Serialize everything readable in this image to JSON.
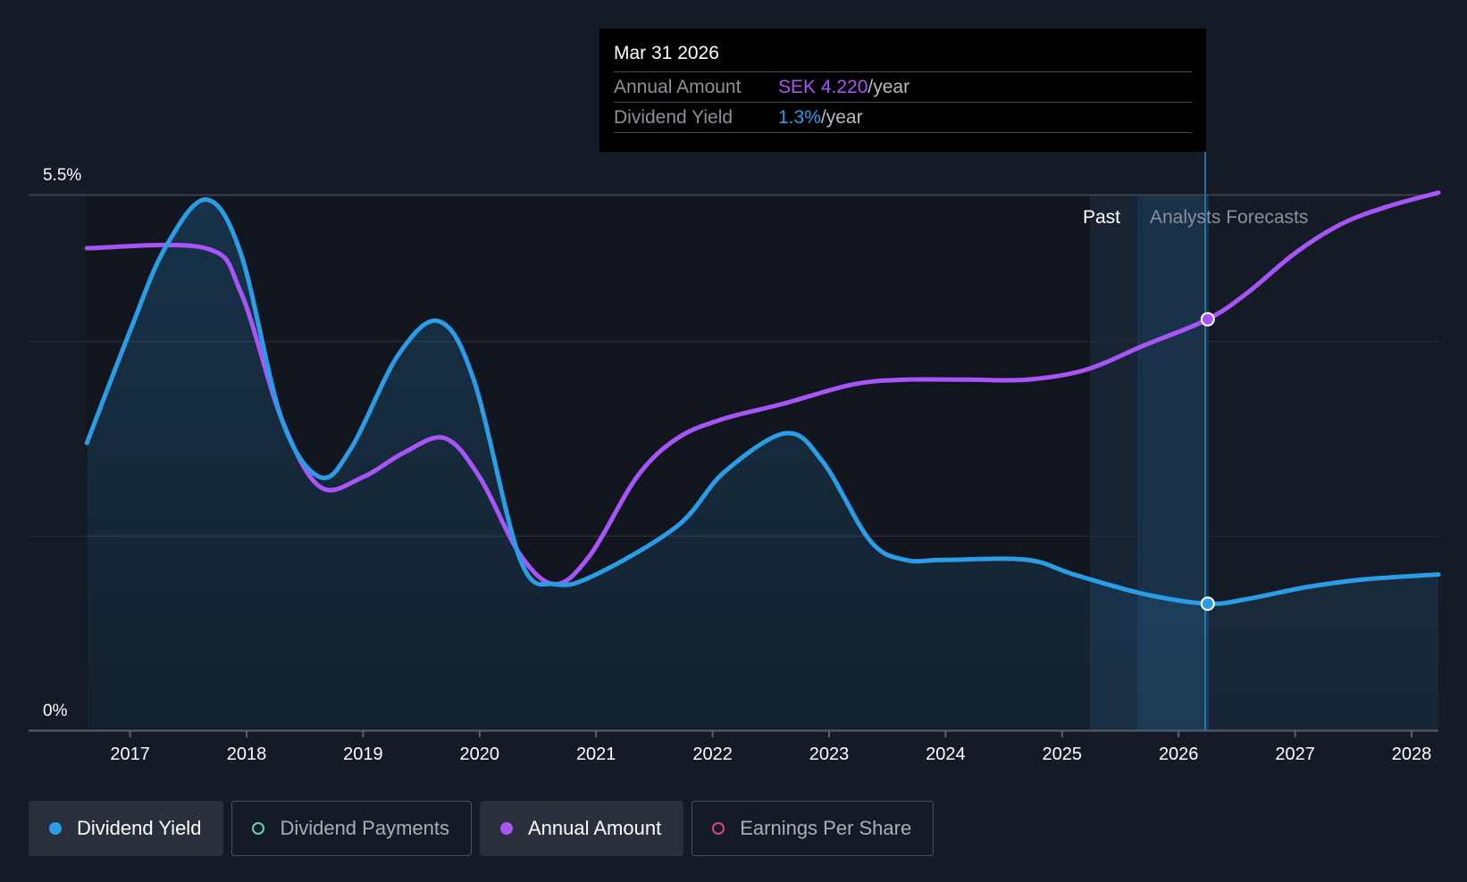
{
  "colors": {
    "background": "#151b26",
    "dividend_yield": "#2b9ce6",
    "annual_amount": "#a855f7",
    "dividend_payments": "#5fd0c5",
    "earnings_per_share": "#d04a82"
  },
  "tooltip": {
    "date": "Mar 31 2026",
    "rows": [
      {
        "label": "Annual Amount",
        "value": "SEK 4.220",
        "unit": "/year"
      },
      {
        "label": "Dividend Yield",
        "value": "1.3%",
        "unit": "/year"
      }
    ]
  },
  "legend": [
    {
      "label": "Dividend Yield",
      "active": true,
      "icon": "filled-dot-icon"
    },
    {
      "label": "Dividend Payments",
      "active": false,
      "icon": "hollow-dot-icon"
    },
    {
      "label": "Annual Amount",
      "active": true,
      "icon": "filled-dot-icon"
    },
    {
      "label": "Earnings Per Share",
      "active": false,
      "icon": "hollow-dot-icon"
    }
  ],
  "chart_data": {
    "type": "line",
    "title": "",
    "y_tick_labels": {
      "top": "5.5%",
      "bottom": "0%"
    },
    "ylim": [
      0,
      5.5
    ],
    "xlim": [
      2016.62,
      2028.23
    ],
    "x_ticks": [
      "2017",
      "2018",
      "2019",
      "2020",
      "2021",
      "2022",
      "2023",
      "2024",
      "2025",
      "2026",
      "2027",
      "2028"
    ],
    "past_label": "Past",
    "forecast_label": "Analysts Forecasts",
    "forecast_start": 2025.25,
    "highlight_x": 2026.25,
    "series": [
      {
        "name": "Dividend Yield",
        "unit": "%",
        "area": true,
        "points": [
          [
            2016.63,
            2.95
          ],
          [
            2017.0,
            4.1
          ],
          [
            2017.3,
            4.95
          ],
          [
            2017.65,
            5.45
          ],
          [
            2017.95,
            4.9
          ],
          [
            2018.3,
            3.2
          ],
          [
            2018.63,
            2.6
          ],
          [
            2018.9,
            2.9
          ],
          [
            2019.3,
            3.85
          ],
          [
            2019.65,
            4.2
          ],
          [
            2019.95,
            3.6
          ],
          [
            2020.35,
            1.75
          ],
          [
            2020.65,
            1.5
          ],
          [
            2021.0,
            1.6
          ],
          [
            2021.7,
            2.1
          ],
          [
            2022.1,
            2.65
          ],
          [
            2022.63,
            3.05
          ],
          [
            2022.95,
            2.75
          ],
          [
            2023.35,
            1.95
          ],
          [
            2023.65,
            1.75
          ],
          [
            2024.0,
            1.75
          ],
          [
            2024.7,
            1.75
          ],
          [
            2025.1,
            1.6
          ],
          [
            2025.7,
            1.4
          ],
          [
            2026.25,
            1.3
          ],
          [
            2026.6,
            1.35
          ],
          [
            2027.1,
            1.47
          ],
          [
            2027.6,
            1.55
          ],
          [
            2028.23,
            1.6
          ]
        ]
      },
      {
        "name": "Annual Amount",
        "unit": "SEK",
        "area": false,
        "points": [
          [
            2016.63,
            4.95
          ],
          [
            2017.65,
            4.95
          ],
          [
            2017.95,
            4.5
          ],
          [
            2018.3,
            3.2
          ],
          [
            2018.63,
            2.5
          ],
          [
            2019.0,
            2.6
          ],
          [
            2019.35,
            2.85
          ],
          [
            2019.7,
            3.0
          ],
          [
            2020.0,
            2.6
          ],
          [
            2020.35,
            1.8
          ],
          [
            2020.65,
            1.5
          ],
          [
            2020.95,
            1.8
          ],
          [
            2021.35,
            2.6
          ],
          [
            2021.7,
            3.0
          ],
          [
            2022.1,
            3.2
          ],
          [
            2022.6,
            3.35
          ],
          [
            2023.2,
            3.55
          ],
          [
            2023.65,
            3.6
          ],
          [
            2024.2,
            3.6
          ],
          [
            2024.7,
            3.6
          ],
          [
            2025.2,
            3.7
          ],
          [
            2025.7,
            3.95
          ],
          [
            2026.25,
            4.22
          ],
          [
            2026.6,
            4.5
          ],
          [
            2027.0,
            4.9
          ],
          [
            2027.4,
            5.2
          ],
          [
            2027.8,
            5.38
          ],
          [
            2028.23,
            5.52
          ]
        ]
      }
    ]
  }
}
